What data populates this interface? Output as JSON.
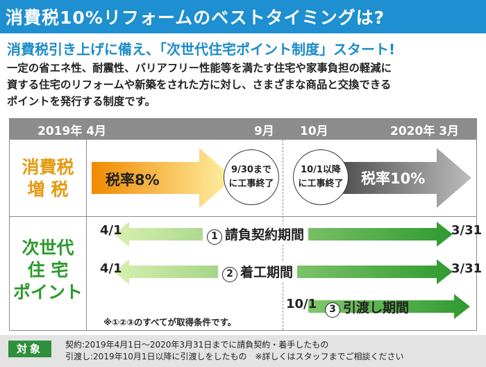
{
  "title": "消費税10%リフォームのベストタイミングは?",
  "subheading": "消費税引き上げに備え、「次世代住宅ポイント制度」スタート!",
  "body_lines": [
    "一定の省エネ性、耐震性、バリアフリー性能等を満たす住宅や家事負担の軽減に",
    "資する住宅のリフォームや新築をされた方に対し、さまざまな商品と交換できる",
    "ポイントを発行する制度です。"
  ],
  "timeline": {
    "start": "2019年 4月",
    "sep": "9月",
    "oct": "10月",
    "end": "2020年 3月"
  },
  "tax": {
    "row_label_1": "消費税",
    "row_label_2": "増 税",
    "rate_before": "税率8%",
    "rate_after": "税率10%",
    "note_before_1": "9/30まで",
    "note_before_2": "に工事終了",
    "note_after_1": "10/1以降",
    "note_after_2": "に工事終了"
  },
  "points": {
    "row_label_1": "次世代",
    "row_label_2": "住 宅",
    "row_label_3": "ポイント",
    "periods": [
      {
        "num": "1",
        "label": "請負契約期間",
        "start": "4/1",
        "end": "3/31"
      },
      {
        "num": "2",
        "label": "着工期間",
        "start": "4/1",
        "end": "3/31"
      },
      {
        "num": "3",
        "label": "引渡し期間",
        "start": "10/1",
        "end": ""
      }
    ],
    "condition_note": "※①②③のすべてが取得条件です。"
  },
  "footer": {
    "badge": "対象",
    "line1": "契約:2019年4月1日〜2020年3月31日までに請負契約・着手したもの",
    "line2": "引渡し:2019年10月1日以降に引渡しをしたもの　※詳しくはスタッフまでご相談ください"
  },
  "colors": {
    "title_bg": "#1e8fd0",
    "accent_orange": "#e59a10",
    "accent_green": "#2a9a2a",
    "gray_arrow": "#6f6f6f"
  }
}
